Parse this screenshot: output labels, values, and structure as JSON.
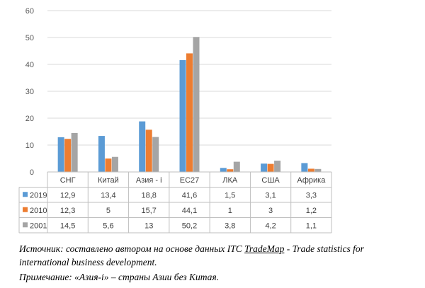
{
  "chart_data": {
    "type": "bar",
    "categories": [
      "СНГ",
      "Китай",
      "Азия - i",
      "ЕС27",
      "ЛКА",
      "США",
      "Африка"
    ],
    "series": [
      {
        "name": "2019",
        "color": "#5B9BD5",
        "values": [
          12.9,
          13.4,
          18.8,
          41.6,
          1.5,
          3.1,
          3.3
        ],
        "labels": [
          "12,9",
          "13,4",
          "18,8",
          "41,6",
          "1,5",
          "3,1",
          "3,3"
        ]
      },
      {
        "name": "2010",
        "color": "#ED7D31",
        "values": [
          12.3,
          5,
          15.7,
          44.1,
          1,
          3,
          1.2
        ],
        "labels": [
          "12,3",
          "5",
          "15,7",
          "44,1",
          "1",
          "3",
          "1,2"
        ]
      },
      {
        "name": "2001",
        "color": "#A5A5A5",
        "values": [
          14.5,
          5.6,
          13,
          50.2,
          3.8,
          4.2,
          1.1
        ],
        "labels": [
          "14,5",
          "5,6",
          "13",
          "50,2",
          "3,8",
          "4,2",
          "1,1"
        ]
      }
    ],
    "ylim": [
      0,
      60
    ],
    "yticks": [
      "0",
      "10",
      "20",
      "30",
      "40",
      "50",
      "60"
    ],
    "grid": true,
    "legend": "data-table",
    "title": "",
    "xlabel": "",
    "ylabel": ""
  },
  "caption": {
    "source_prefix": "Источник: составлено автором на основе данных ITC ",
    "source_link": "TradeMap",
    "source_suffix": " - Trade statistics for",
    "source_line2": "international business development.",
    "note": "Примечание: «Азия-i» – страны Азии без Китая."
  }
}
